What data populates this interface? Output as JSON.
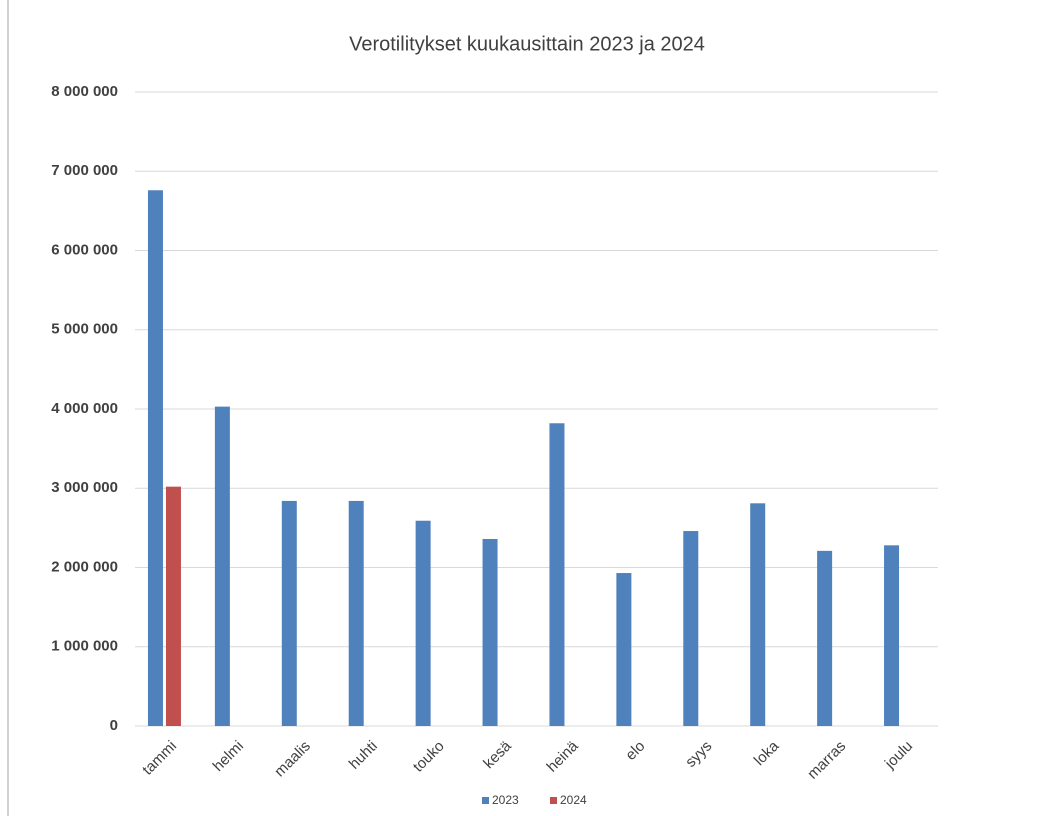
{
  "chart_data": {
    "type": "bar",
    "title": "Verotilitykset kuukausittain 2023 ja 2024",
    "categories": [
      "tammi",
      "helmi",
      "maalis",
      "huhti",
      "touko",
      "kesä",
      "heinä",
      "elo",
      "syys",
      "loka",
      "marras",
      "joulu"
    ],
    "series": [
      {
        "name": "2023",
        "color": "#4f81bd",
        "values": [
          6760000,
          4030000,
          2840000,
          2840000,
          2590000,
          2360000,
          3820000,
          1930000,
          2460000,
          2810000,
          2210000,
          2280000
        ]
      },
      {
        "name": "2024",
        "color": "#c0504d",
        "values": [
          3020000,
          null,
          null,
          null,
          null,
          null,
          null,
          null,
          null,
          null,
          null,
          null
        ]
      }
    ],
    "ylim": [
      0,
      8000000
    ],
    "yticks": [
      {
        "value": 0,
        "label": "0"
      },
      {
        "value": 1000000,
        "label": "1 000 000"
      },
      {
        "value": 2000000,
        "label": "2 000 000"
      },
      {
        "value": 3000000,
        "label": "3 000 000"
      },
      {
        "value": 4000000,
        "label": "4 000 000"
      },
      {
        "value": 5000000,
        "label": "5 000 000"
      },
      {
        "value": 6000000,
        "label": "6 000 000"
      },
      {
        "value": 7000000,
        "label": "7 000 000"
      },
      {
        "value": 8000000,
        "label": "8 000 000"
      }
    ],
    "grid": true,
    "legend": "bottom"
  }
}
